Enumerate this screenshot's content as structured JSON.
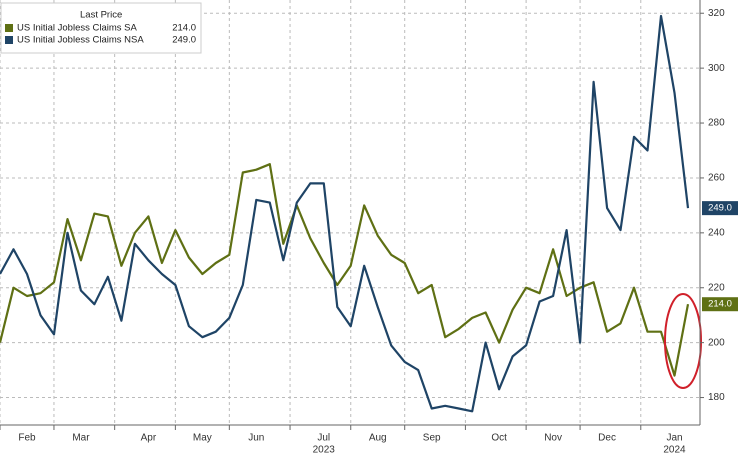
{
  "chart_data": {
    "type": "line",
    "legend_title": "Last Price",
    "categories": [
      null,
      null,
      "Feb",
      null,
      null,
      null,
      "Mar",
      null,
      null,
      null,
      null,
      "Apr",
      null,
      null,
      null,
      "May",
      null,
      null,
      null,
      "Jun",
      null,
      null,
      null,
      null,
      "Jul",
      null,
      null,
      null,
      "Aug",
      null,
      null,
      null,
      "Sep",
      null,
      null,
      null,
      null,
      "Oct",
      null,
      null,
      null,
      "Nov",
      null,
      null,
      null,
      "Dec",
      null,
      null,
      null,
      null,
      "Jan",
      null
    ],
    "years": [
      null,
      null,
      null,
      null,
      null,
      null,
      null,
      null,
      null,
      null,
      null,
      null,
      null,
      null,
      null,
      null,
      null,
      null,
      null,
      null,
      null,
      null,
      null,
      null,
      "2023",
      null,
      null,
      null,
      null,
      null,
      null,
      null,
      null,
      null,
      null,
      null,
      null,
      null,
      null,
      null,
      null,
      null,
      null,
      null,
      null,
      null,
      null,
      null,
      null,
      null,
      "2024",
      null
    ],
    "series": [
      {
        "name": "US Initial Jobless Claims SA",
        "color": "#5f7014",
        "values": [
          200,
          220,
          217,
          218,
          222,
          245,
          230,
          247,
          246,
          228,
          240,
          246,
          229,
          241,
          231,
          225,
          229,
          232,
          262,
          263,
          265,
          236,
          250,
          238,
          229,
          221,
          228,
          250,
          239,
          232,
          229,
          218,
          221,
          202,
          205,
          209,
          211,
          200,
          212,
          220,
          218,
          234,
          217,
          220,
          222,
          204,
          207,
          220,
          204,
          204,
          188,
          214
        ],
        "value_labels": [
          null,
          null,
          null,
          null,
          null,
          null,
          null,
          null,
          null,
          null,
          null,
          null,
          null,
          null,
          null,
          null,
          null,
          null,
          null,
          null,
          null,
          null,
          null,
          null,
          null,
          null,
          null,
          null,
          null,
          null,
          null,
          null,
          null,
          null,
          null,
          null,
          null,
          null,
          null,
          null,
          null,
          null,
          null,
          null,
          null,
          null,
          null,
          null,
          null,
          null,
          null,
          "214.0"
        ]
      },
      {
        "name": "US Initial Jobless Claims NSA",
        "color": "#1f4466",
        "values": [
          225,
          234,
          225,
          210,
          203,
          240,
          219,
          214,
          224,
          208,
          236,
          230,
          225,
          221,
          206,
          202,
          204,
          209,
          221,
          252,
          251,
          230,
          251,
          258,
          258,
          213,
          206,
          228,
          213,
          199,
          193,
          190,
          176,
          177,
          176,
          175,
          200,
          183,
          195,
          199,
          215,
          217,
          241,
          200,
          295,
          249,
          241,
          275,
          270,
          319,
          291,
          249
        ],
        "value_labels": [
          null,
          null,
          null,
          null,
          null,
          null,
          null,
          null,
          null,
          null,
          null,
          null,
          null,
          null,
          null,
          null,
          null,
          null,
          null,
          null,
          null,
          null,
          null,
          null,
          null,
          null,
          null,
          null,
          null,
          null,
          null,
          null,
          null,
          null,
          null,
          null,
          null,
          null,
          null,
          null,
          null,
          null,
          null,
          null,
          null,
          null,
          null,
          null,
          null,
          null,
          null,
          "249.0"
        ]
      }
    ],
    "ylim": [
      170,
      323
    ],
    "yticks": [
      180,
      200,
      220,
      240,
      260,
      280,
      300,
      320
    ],
    "grid": true
  }
}
